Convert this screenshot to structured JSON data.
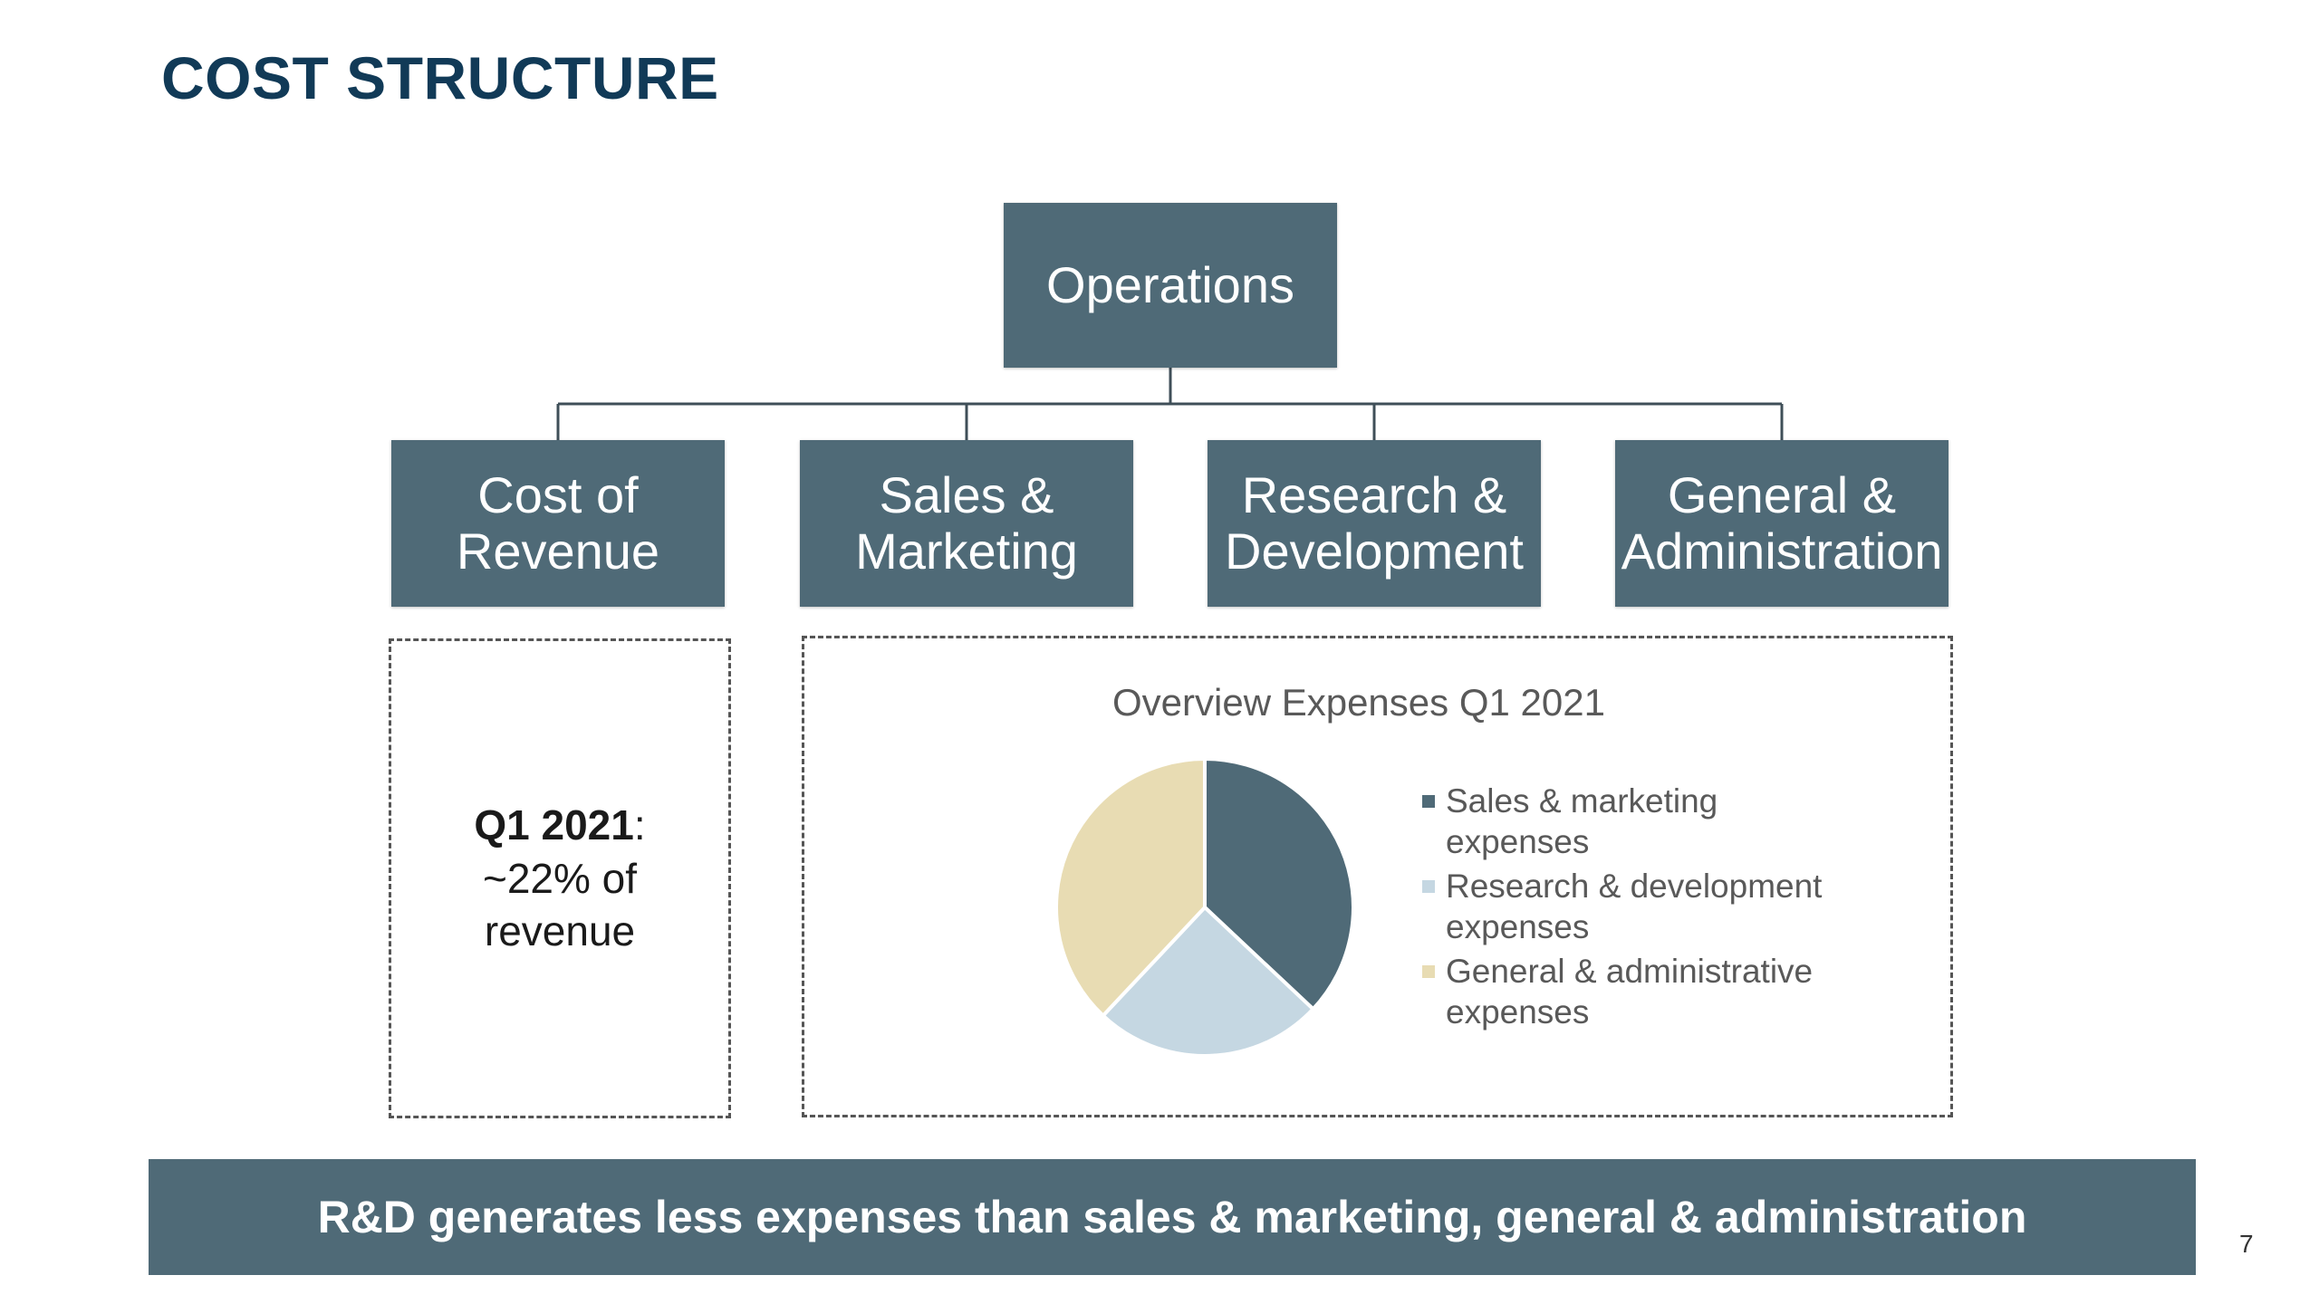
{
  "title": "COST STRUCTURE",
  "diagram": {
    "root": "Operations",
    "children": [
      {
        "line1": "Cost of",
        "line2": "Revenue"
      },
      {
        "line1": "Sales &",
        "line2": "Marketing"
      },
      {
        "line1": "Research &",
        "line2": "Development"
      },
      {
        "line1": "General &",
        "line2": "Administration"
      }
    ],
    "line_color": "#3f4f58",
    "box_color": "#4f6a77"
  },
  "cost_of_revenue_note": {
    "period": "Q1 2021",
    "colon": ":",
    "line2": "~22% of",
    "line3": "revenue"
  },
  "chart_data": {
    "type": "pie",
    "title": "Overview Expenses Q1 2021",
    "slices": [
      {
        "label": "Sales & marketing expenses",
        "value": 37,
        "color": "#4f6a77"
      },
      {
        "label": "Research & development expenses",
        "value": 25,
        "color": "#c5d7e2"
      },
      {
        "label": "General & administrative expenses",
        "value": 38,
        "color": "#e8dcb3"
      }
    ],
    "legend": {
      "position": "right",
      "entries": [
        {
          "line1": "Sales & marketing",
          "line2": "expenses"
        },
        {
          "line1": "Research & development",
          "line2": "expenses"
        },
        {
          "line1": "General & administrative",
          "line2": "expenses"
        }
      ]
    }
  },
  "banner": "R&D generates less expenses than sales & marketing, general & administration",
  "page_number": "7"
}
